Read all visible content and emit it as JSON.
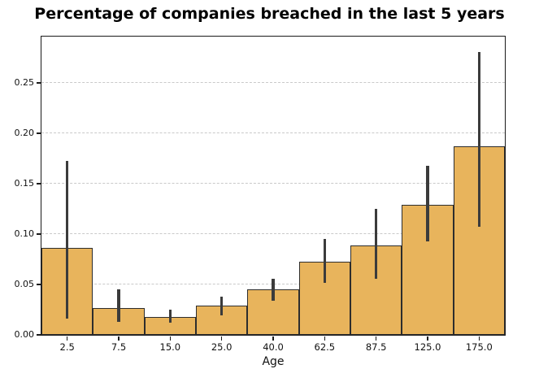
{
  "chart_data": {
    "type": "bar",
    "title": "Percentage of companies breached in the last 5 years",
    "xlabel": "Age",
    "ylabel": "",
    "categories": [
      "2.5",
      "7.5",
      "15.0",
      "25.0",
      "40.0",
      "62.5",
      "87.5",
      "125.0",
      "175.0"
    ],
    "values": [
      0.086,
      0.027,
      0.018,
      0.029,
      0.045,
      0.073,
      0.089,
      0.129,
      0.187
    ],
    "error_low": [
      0.016,
      0.013,
      0.012,
      0.019,
      0.034,
      0.052,
      0.056,
      0.093,
      0.107
    ],
    "error_high": [
      0.173,
      0.045,
      0.025,
      0.038,
      0.056,
      0.095,
      0.125,
      0.168,
      0.281
    ],
    "ylim": [
      0,
      0.296
    ],
    "ytick_values": [
      0,
      0.05,
      0.1,
      0.15,
      0.2,
      0.25
    ],
    "ytick_labels": [
      "0.00",
      "0.05",
      "0.10",
      "0.15",
      "0.20",
      "0.25"
    ],
    "grid": {
      "axis": "y",
      "style": "dashed",
      "visible": true
    },
    "legend": null,
    "colors": {
      "bar_fill": "#e8b45c",
      "bar_edge": "#2d2d2d",
      "error_bar": "#3b3b3b",
      "gridline": "#c9c9c9",
      "spine": "#1a1a1a",
      "text": "#111111",
      "background": "#ffffff"
    }
  }
}
